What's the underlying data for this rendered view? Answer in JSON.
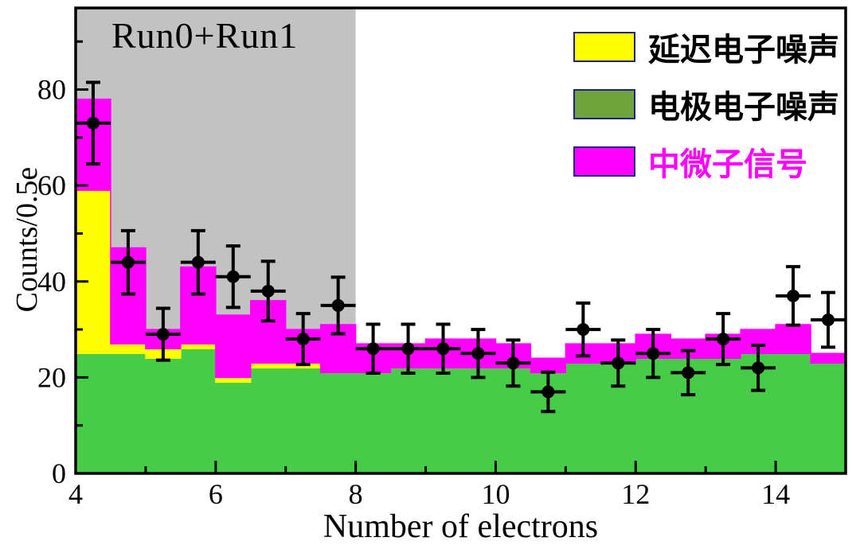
{
  "annotation": {
    "run_label": "Run0+Run1"
  },
  "legend": {
    "items": [
      {
        "name": "delayed-electron-noise",
        "label": "延迟电子噪声",
        "color": "#ffff00",
        "text_color": "#000000"
      },
      {
        "name": "electrode-electron-noise",
        "label": "电极电子噪声",
        "color": "#6fa33c",
        "text_color": "#000000"
      },
      {
        "name": "neutrino-signal",
        "label": "中微子信号",
        "color": "#ff00ff",
        "text_color": "#ff00ff"
      }
    ]
  },
  "chart_data": {
    "type": "bar",
    "title": "",
    "xlabel": "Number of electrons",
    "ylabel": "Counts/0.5e",
    "xlim": [
      4,
      15
    ],
    "ylim": [
      0,
      97
    ],
    "x_major_ticks": [
      4,
      6,
      8,
      10,
      12,
      14
    ],
    "x_minor_ticks": [
      5,
      7,
      9,
      11,
      13,
      15
    ],
    "y_major_ticks": [
      0,
      20,
      40,
      60,
      80
    ],
    "y_minor_ticks": [
      10,
      30,
      50,
      70,
      90
    ],
    "grid": false,
    "legend_position": "top-right",
    "shaded_region": {
      "x0": 4,
      "x1": 8,
      "color": "#c2c2c2"
    },
    "bin_start": 4.0,
    "bin_width": 0.5,
    "bin_centers": [
      4.25,
      4.75,
      5.25,
      5.75,
      6.25,
      6.75,
      7.25,
      7.75,
      8.25,
      8.75,
      9.25,
      9.75,
      10.25,
      10.75,
      11.25,
      11.75,
      12.25,
      12.75,
      13.25,
      13.75,
      14.25,
      14.75
    ],
    "series": [
      {
        "name": "electrode-electron-noise",
        "label": "电极电子噪声",
        "color": "#47cc47",
        "values": [
          25,
          25,
          24,
          26,
          19,
          22,
          22,
          21,
          21,
          22,
          22,
          22,
          22,
          21,
          23,
          23,
          24,
          24,
          24,
          25,
          25,
          23
        ]
      },
      {
        "name": "delayed-electron-noise",
        "label": "延迟电子噪声",
        "color": "#ffff00",
        "values": [
          34,
          2,
          2,
          1,
          1,
          1,
          1,
          0,
          0,
          0,
          0,
          0,
          0,
          0,
          0,
          0,
          0,
          0,
          0,
          0,
          0,
          0
        ]
      },
      {
        "name": "neutrino-signal",
        "label": "中微子信号",
        "color": "#ff00ff",
        "values": [
          19,
          20,
          4,
          16,
          13,
          13,
          7,
          10,
          6,
          5,
          6,
          6,
          5,
          3,
          4,
          4,
          5,
          4,
          5,
          5,
          6,
          2
        ]
      }
    ],
    "data_points": {
      "marker": "black-filled-circle",
      "y": [
        73,
        44,
        29,
        44,
        41,
        38,
        28,
        35,
        26,
        26,
        26,
        25,
        23,
        17,
        30,
        23,
        25,
        21,
        28,
        22,
        37,
        32
      ],
      "yerr": [
        8.5,
        6.6,
        5.4,
        6.6,
        6.4,
        6.2,
        5.3,
        5.9,
        5.1,
        5.1,
        5.1,
        5.0,
        4.8,
        4.1,
        5.5,
        4.8,
        5.0,
        4.6,
        5.3,
        4.7,
        6.1,
        5.7
      ],
      "xerr": 0.25
    }
  }
}
